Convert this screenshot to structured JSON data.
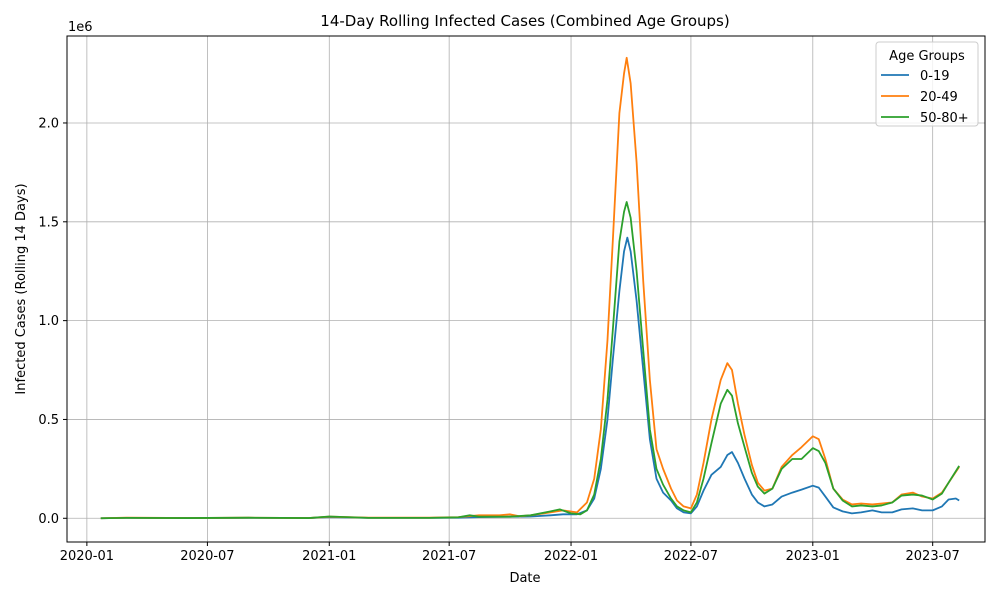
{
  "chart_data": {
    "type": "line",
    "title": "14-Day Rolling Infected Cases (Combined Age Groups)",
    "xlabel": "Date",
    "ylabel": "Infected Cases (Rolling 14 Days)",
    "y_offset_label": "1e6",
    "x_ticks": [
      "2020-01",
      "2020-07",
      "2021-01",
      "2021-07",
      "2022-01",
      "2022-07",
      "2023-01",
      "2023-07"
    ],
    "y_ticks": [
      0,
      0.5,
      1.0,
      1.5,
      2.0
    ],
    "y_tick_labels": [
      "0.0",
      "0.5",
      "1.0",
      "1.5",
      "2.0"
    ],
    "xlim": [
      "2019-12-02",
      "2023-09-18"
    ],
    "ylim": [
      -120000,
      2440000
    ],
    "grid": true,
    "legend": {
      "title": "Age Groups",
      "position": "top-right"
    },
    "series": [
      {
        "name": "0-19",
        "color": "#1f77b4",
        "points": [
          [
            "2020-01-22",
            0
          ],
          [
            "2020-03-01",
            2000
          ],
          [
            "2020-06-01",
            1000
          ],
          [
            "2020-09-01",
            2000
          ],
          [
            "2020-12-01",
            1000
          ],
          [
            "2021-01-01",
            6000
          ],
          [
            "2021-03-01",
            2000
          ],
          [
            "2021-06-01",
            2000
          ],
          [
            "2021-07-15",
            3000
          ],
          [
            "2021-08-15",
            6000
          ],
          [
            "2021-10-01",
            8000
          ],
          [
            "2021-11-01",
            9000
          ],
          [
            "2021-12-01",
            15000
          ],
          [
            "2021-12-20",
            20000
          ],
          [
            "2022-01-10",
            20000
          ],
          [
            "2022-01-25",
            40000
          ],
          [
            "2022-02-05",
            100000
          ],
          [
            "2022-02-15",
            250000
          ],
          [
            "2022-02-25",
            500000
          ],
          [
            "2022-03-05",
            800000
          ],
          [
            "2022-03-15",
            1150000
          ],
          [
            "2022-03-22",
            1350000
          ],
          [
            "2022-03-27",
            1420000
          ],
          [
            "2022-04-01",
            1350000
          ],
          [
            "2022-04-10",
            1100000
          ],
          [
            "2022-04-20",
            750000
          ],
          [
            "2022-04-30",
            400000
          ],
          [
            "2022-05-10",
            200000
          ],
          [
            "2022-05-20",
            130000
          ],
          [
            "2022-06-01",
            90000
          ],
          [
            "2022-06-10",
            50000
          ],
          [
            "2022-06-20",
            30000
          ],
          [
            "2022-07-01",
            25000
          ],
          [
            "2022-07-10",
            60000
          ],
          [
            "2022-07-20",
            140000
          ],
          [
            "2022-08-01",
            220000
          ],
          [
            "2022-08-15",
            260000
          ],
          [
            "2022-08-25",
            320000
          ],
          [
            "2022-09-01",
            335000
          ],
          [
            "2022-09-10",
            280000
          ],
          [
            "2022-09-20",
            200000
          ],
          [
            "2022-10-01",
            120000
          ],
          [
            "2022-10-10",
            80000
          ],
          [
            "2022-10-20",
            60000
          ],
          [
            "2022-11-01",
            70000
          ],
          [
            "2022-11-15",
            110000
          ],
          [
            "2022-12-01",
            130000
          ],
          [
            "2022-12-15",
            145000
          ],
          [
            "2023-01-01",
            165000
          ],
          [
            "2023-01-10",
            155000
          ],
          [
            "2023-01-20",
            110000
          ],
          [
            "2023-02-01",
            55000
          ],
          [
            "2023-02-15",
            35000
          ],
          [
            "2023-03-01",
            25000
          ],
          [
            "2023-03-15",
            30000
          ],
          [
            "2023-04-01",
            40000
          ],
          [
            "2023-04-15",
            30000
          ],
          [
            "2023-05-01",
            30000
          ],
          [
            "2023-05-15",
            45000
          ],
          [
            "2023-06-01",
            50000
          ],
          [
            "2023-06-15",
            40000
          ],
          [
            "2023-07-01",
            40000
          ],
          [
            "2023-07-15",
            60000
          ],
          [
            "2023-07-25",
            95000
          ],
          [
            "2023-08-05",
            100000
          ],
          [
            "2023-08-10",
            90000
          ]
        ]
      },
      {
        "name": "20-49",
        "color": "#ff7f0e",
        "points": [
          [
            "2020-01-22",
            0
          ],
          [
            "2020-03-01",
            3000
          ],
          [
            "2020-06-01",
            1000
          ],
          [
            "2020-09-01",
            3000
          ],
          [
            "2020-12-01",
            1000
          ],
          [
            "2021-01-01",
            8000
          ],
          [
            "2021-03-01",
            3000
          ],
          [
            "2021-06-01",
            3000
          ],
          [
            "2021-07-15",
            6000
          ],
          [
            "2021-08-15",
            15000
          ],
          [
            "2021-09-15",
            15000
          ],
          [
            "2021-10-01",
            20000
          ],
          [
            "2021-10-15",
            10000
          ],
          [
            "2021-11-01",
            15000
          ],
          [
            "2021-12-01",
            30000
          ],
          [
            "2021-12-20",
            40000
          ],
          [
            "2022-01-10",
            30000
          ],
          [
            "2022-01-25",
            80000
          ],
          [
            "2022-02-05",
            200000
          ],
          [
            "2022-02-15",
            450000
          ],
          [
            "2022-02-25",
            900000
          ],
          [
            "2022-03-05",
            1400000
          ],
          [
            "2022-03-15",
            2050000
          ],
          [
            "2022-03-22",
            2250000
          ],
          [
            "2022-03-26",
            2330000
          ],
          [
            "2022-04-01",
            2200000
          ],
          [
            "2022-04-10",
            1800000
          ],
          [
            "2022-04-20",
            1200000
          ],
          [
            "2022-04-30",
            700000
          ],
          [
            "2022-05-10",
            350000
          ],
          [
            "2022-05-20",
            250000
          ],
          [
            "2022-06-01",
            150000
          ],
          [
            "2022-06-10",
            90000
          ],
          [
            "2022-06-20",
            60000
          ],
          [
            "2022-07-01",
            50000
          ],
          [
            "2022-07-10",
            120000
          ],
          [
            "2022-07-20",
            280000
          ],
          [
            "2022-08-01",
            500000
          ],
          [
            "2022-08-15",
            700000
          ],
          [
            "2022-08-25",
            785000
          ],
          [
            "2022-09-01",
            750000
          ],
          [
            "2022-09-10",
            580000
          ],
          [
            "2022-09-20",
            420000
          ],
          [
            "2022-10-01",
            270000
          ],
          [
            "2022-10-10",
            180000
          ],
          [
            "2022-10-20",
            140000
          ],
          [
            "2022-11-01",
            150000
          ],
          [
            "2022-11-15",
            260000
          ],
          [
            "2022-12-01",
            320000
          ],
          [
            "2022-12-15",
            360000
          ],
          [
            "2023-01-01",
            415000
          ],
          [
            "2023-01-10",
            400000
          ],
          [
            "2023-01-20",
            300000
          ],
          [
            "2023-02-01",
            150000
          ],
          [
            "2023-02-15",
            95000
          ],
          [
            "2023-03-01",
            70000
          ],
          [
            "2023-03-15",
            75000
          ],
          [
            "2023-04-01",
            70000
          ],
          [
            "2023-04-15",
            75000
          ],
          [
            "2023-05-01",
            80000
          ],
          [
            "2023-05-15",
            120000
          ],
          [
            "2023-06-01",
            130000
          ],
          [
            "2023-06-15",
            110000
          ],
          [
            "2023-07-01",
            100000
          ],
          [
            "2023-07-15",
            130000
          ],
          [
            "2023-07-25",
            180000
          ],
          [
            "2023-08-10",
            260000
          ]
        ]
      },
      {
        "name": "50-80+",
        "color": "#2ca02c",
        "points": [
          [
            "2020-01-22",
            0
          ],
          [
            "2020-03-01",
            2000
          ],
          [
            "2020-06-01",
            1000
          ],
          [
            "2020-09-01",
            3000
          ],
          [
            "2020-12-01",
            1000
          ],
          [
            "2021-01-01",
            9000
          ],
          [
            "2021-03-01",
            2000
          ],
          [
            "2021-06-01",
            2000
          ],
          [
            "2021-07-15",
            5000
          ],
          [
            "2021-08-01",
            15000
          ],
          [
            "2021-08-15",
            8000
          ],
          [
            "2021-10-01",
            8000
          ],
          [
            "2021-11-01",
            15000
          ],
          [
            "2021-12-01",
            35000
          ],
          [
            "2021-12-15",
            45000
          ],
          [
            "2022-01-01",
            25000
          ],
          [
            "2022-01-15",
            20000
          ],
          [
            "2022-01-25",
            40000
          ],
          [
            "2022-02-05",
            120000
          ],
          [
            "2022-02-15",
            300000
          ],
          [
            "2022-02-25",
            600000
          ],
          [
            "2022-03-05",
            950000
          ],
          [
            "2022-03-15",
            1400000
          ],
          [
            "2022-03-22",
            1550000
          ],
          [
            "2022-03-26",
            1600000
          ],
          [
            "2022-04-01",
            1520000
          ],
          [
            "2022-04-10",
            1250000
          ],
          [
            "2022-04-20",
            850000
          ],
          [
            "2022-04-30",
            450000
          ],
          [
            "2022-05-10",
            250000
          ],
          [
            "2022-05-20",
            170000
          ],
          [
            "2022-06-01",
            100000
          ],
          [
            "2022-06-10",
            60000
          ],
          [
            "2022-06-20",
            40000
          ],
          [
            "2022-07-01",
            30000
          ],
          [
            "2022-07-10",
            80000
          ],
          [
            "2022-07-20",
            200000
          ],
          [
            "2022-08-01",
            380000
          ],
          [
            "2022-08-15",
            580000
          ],
          [
            "2022-08-25",
            650000
          ],
          [
            "2022-09-01",
            620000
          ],
          [
            "2022-09-10",
            480000
          ],
          [
            "2022-09-20",
            360000
          ],
          [
            "2022-10-01",
            230000
          ],
          [
            "2022-10-10",
            160000
          ],
          [
            "2022-10-20",
            125000
          ],
          [
            "2022-11-01",
            150000
          ],
          [
            "2022-11-15",
            250000
          ],
          [
            "2022-12-01",
            300000
          ],
          [
            "2022-12-15",
            300000
          ],
          [
            "2023-01-01",
            355000
          ],
          [
            "2023-01-10",
            340000
          ],
          [
            "2023-01-20",
            280000
          ],
          [
            "2023-02-01",
            150000
          ],
          [
            "2023-02-15",
            90000
          ],
          [
            "2023-03-01",
            60000
          ],
          [
            "2023-03-15",
            65000
          ],
          [
            "2023-04-01",
            60000
          ],
          [
            "2023-04-15",
            65000
          ],
          [
            "2023-05-01",
            80000
          ],
          [
            "2023-05-15",
            115000
          ],
          [
            "2023-06-01",
            120000
          ],
          [
            "2023-06-15",
            115000
          ],
          [
            "2023-07-01",
            95000
          ],
          [
            "2023-07-15",
            125000
          ],
          [
            "2023-07-25",
            180000
          ],
          [
            "2023-08-10",
            265000
          ]
        ]
      }
    ]
  }
}
